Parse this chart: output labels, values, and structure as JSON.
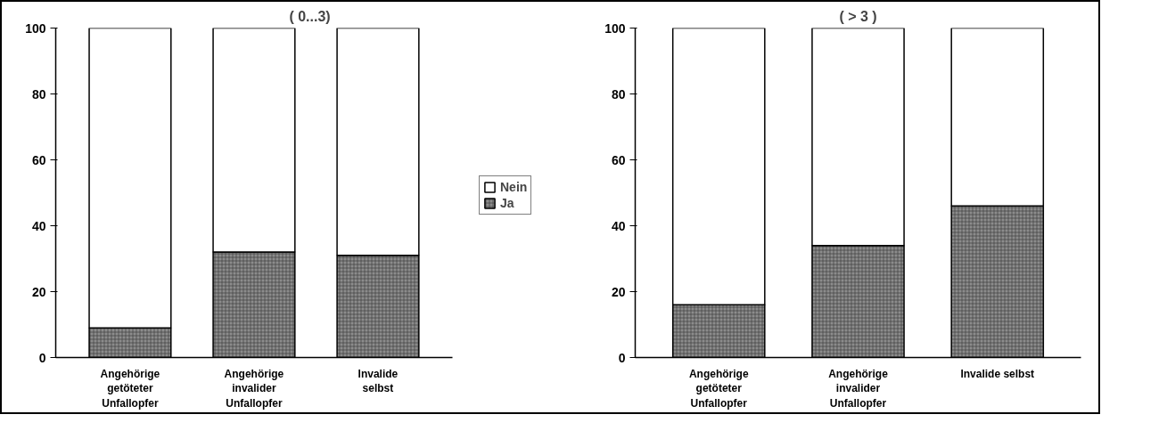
{
  "chart_data": [
    {
      "type": "bar",
      "title": "( 0...3)",
      "stacked": true,
      "categories": [
        "Angehörige\ngetöteter\nUnfallopfer",
        "Angehörige\ninvalider\nUnfallopfer",
        "Invalide\nselbst"
      ],
      "series": [
        {
          "name": "Ja",
          "color": "#8c8c8c",
          "values": [
            9,
            32,
            31
          ]
        },
        {
          "name": "Nein",
          "color": "#ffffff",
          "values": [
            91,
            68,
            69
          ]
        }
      ],
      "ylim": [
        0,
        100
      ],
      "yticks": [
        0,
        20,
        40,
        60,
        80,
        100
      ],
      "grid": false,
      "legend": "right"
    },
    {
      "type": "bar",
      "title": "( > 3 )",
      "stacked": true,
      "categories": [
        "Angehörige\ngetöteter\nUnfallopfer",
        "Angehörige\ninvalider\nUnfallopfer",
        "Invalide selbst"
      ],
      "series": [
        {
          "color": "#8c8c8c",
          "values": [
            16,
            34,
            46
          ]
        },
        {
          "color": "#ffffff",
          "values": [
            84,
            66,
            54
          ]
        }
      ],
      "ylim": [
        0,
        100
      ],
      "yticks": [
        0,
        20,
        40,
        60,
        80,
        100
      ],
      "grid": false,
      "legend": false
    }
  ]
}
